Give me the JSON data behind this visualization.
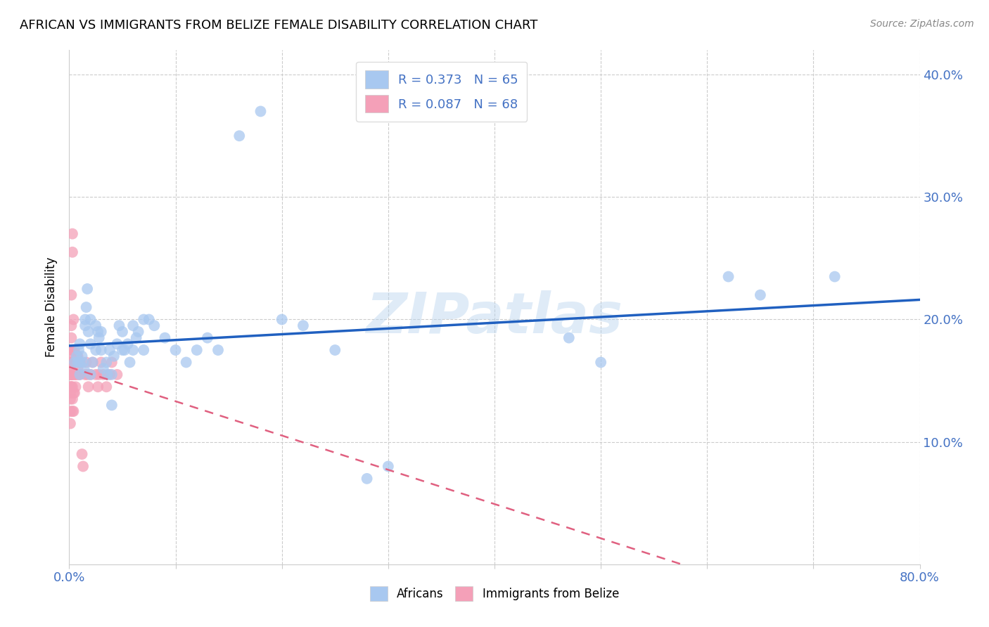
{
  "title": "AFRICAN VS IMMIGRANTS FROM BELIZE FEMALE DISABILITY CORRELATION CHART",
  "source": "Source: ZipAtlas.com",
  "ylabel": "Female Disability",
  "xlim": [
    0.0,
    0.8
  ],
  "ylim": [
    0.0,
    0.42
  ],
  "africans_R": 0.373,
  "africans_N": 65,
  "belize_R": 0.087,
  "belize_N": 68,
  "africans_color": "#a8c8f0",
  "belize_color": "#f4a0b8",
  "africans_line_color": "#2060c0",
  "belize_line_color": "#e06080",
  "watermark": "ZIPatlas",
  "africans_x": [
    0.005,
    0.007,
    0.008,
    0.009,
    0.01,
    0.01,
    0.01,
    0.012,
    0.013,
    0.014,
    0.015,
    0.015,
    0.016,
    0.017,
    0.018,
    0.02,
    0.02,
    0.02,
    0.022,
    0.025,
    0.025,
    0.027,
    0.028,
    0.03,
    0.03,
    0.032,
    0.035,
    0.036,
    0.038,
    0.04,
    0.04,
    0.042,
    0.045,
    0.047,
    0.05,
    0.05,
    0.052,
    0.055,
    0.057,
    0.06,
    0.06,
    0.063,
    0.065,
    0.07,
    0.07,
    0.075,
    0.08,
    0.09,
    0.1,
    0.11,
    0.12,
    0.13,
    0.14,
    0.16,
    0.18,
    0.2,
    0.22,
    0.25,
    0.28,
    0.3,
    0.47,
    0.5,
    0.62,
    0.65,
    0.72
  ],
  "africans_y": [
    0.165,
    0.17,
    0.165,
    0.175,
    0.18,
    0.165,
    0.155,
    0.17,
    0.165,
    0.16,
    0.2,
    0.195,
    0.21,
    0.225,
    0.19,
    0.2,
    0.18,
    0.155,
    0.165,
    0.195,
    0.175,
    0.19,
    0.185,
    0.175,
    0.19,
    0.16,
    0.165,
    0.155,
    0.175,
    0.155,
    0.13,
    0.17,
    0.18,
    0.195,
    0.19,
    0.175,
    0.175,
    0.18,
    0.165,
    0.195,
    0.175,
    0.185,
    0.19,
    0.2,
    0.175,
    0.2,
    0.195,
    0.185,
    0.175,
    0.165,
    0.175,
    0.185,
    0.175,
    0.35,
    0.37,
    0.2,
    0.195,
    0.175,
    0.07,
    0.08,
    0.185,
    0.165,
    0.235,
    0.22,
    0.235
  ],
  "belize_x": [
    0.001,
    0.001,
    0.001,
    0.001,
    0.001,
    0.001,
    0.001,
    0.001,
    0.001,
    0.001,
    0.001,
    0.002,
    0.002,
    0.002,
    0.002,
    0.002,
    0.002,
    0.002,
    0.002,
    0.002,
    0.002,
    0.002,
    0.003,
    0.003,
    0.003,
    0.003,
    0.003,
    0.003,
    0.003,
    0.004,
    0.004,
    0.004,
    0.004,
    0.004,
    0.004,
    0.005,
    0.005,
    0.005,
    0.005,
    0.006,
    0.006,
    0.006,
    0.007,
    0.007,
    0.007,
    0.008,
    0.008,
    0.009,
    0.009,
    0.01,
    0.01,
    0.012,
    0.013,
    0.015,
    0.016,
    0.017,
    0.018,
    0.02,
    0.022,
    0.025,
    0.027,
    0.028,
    0.03,
    0.032,
    0.035,
    0.038,
    0.04,
    0.045
  ],
  "belize_y": [
    0.165,
    0.17,
    0.155,
    0.14,
    0.165,
    0.16,
    0.155,
    0.145,
    0.135,
    0.125,
    0.115,
    0.175,
    0.185,
    0.165,
    0.155,
    0.145,
    0.175,
    0.195,
    0.22,
    0.165,
    0.155,
    0.145,
    0.255,
    0.27,
    0.165,
    0.155,
    0.145,
    0.135,
    0.125,
    0.2,
    0.175,
    0.165,
    0.155,
    0.14,
    0.125,
    0.175,
    0.165,
    0.155,
    0.14,
    0.165,
    0.155,
    0.145,
    0.17,
    0.165,
    0.155,
    0.17,
    0.16,
    0.165,
    0.155,
    0.165,
    0.155,
    0.09,
    0.08,
    0.155,
    0.165,
    0.155,
    0.145,
    0.155,
    0.165,
    0.155,
    0.145,
    0.155,
    0.165,
    0.155,
    0.145,
    0.155,
    0.165,
    0.155
  ]
}
